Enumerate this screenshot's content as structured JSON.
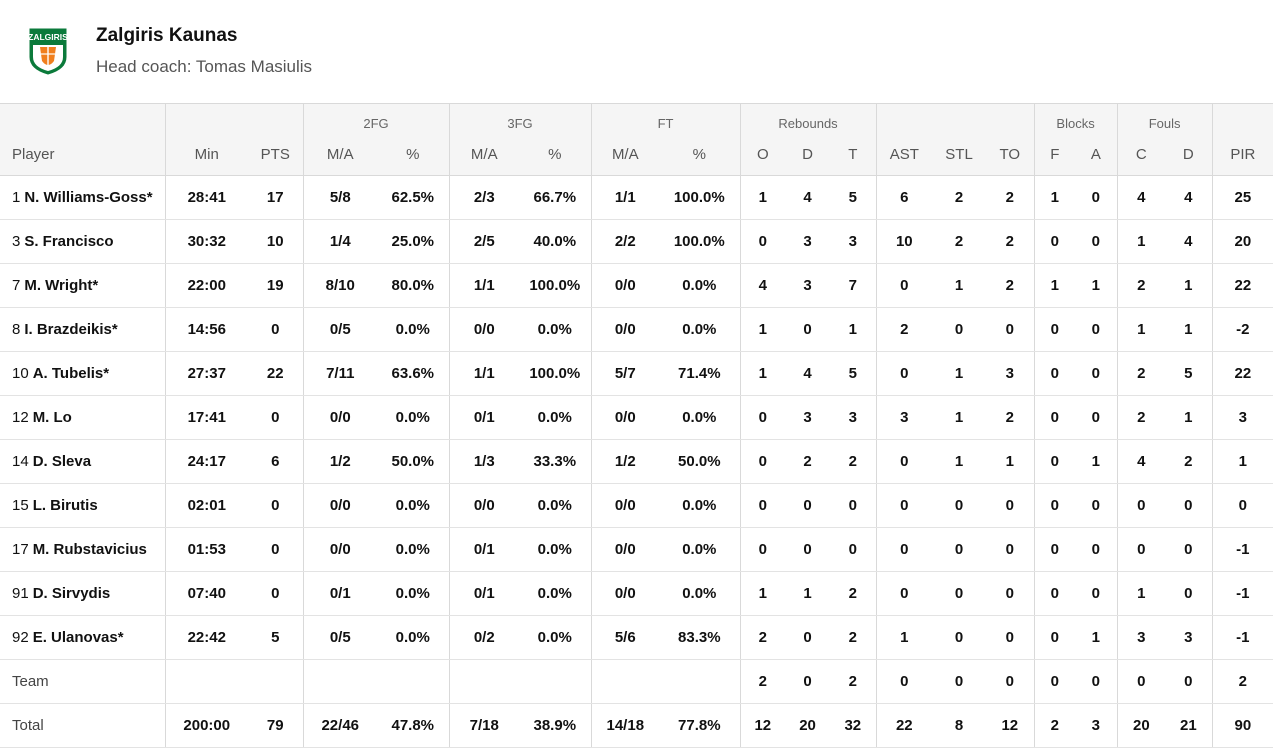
{
  "team": {
    "name": "Zalgiris Kaunas",
    "coach": "Head coach: Tomas Masiulis",
    "logo_text": "ZALGIRIS",
    "colors": {
      "green": "#0b7a3b",
      "orange": "#f07f1e",
      "white": "#ffffff"
    }
  },
  "groups": {
    "fg2": "2FG",
    "fg3": "3FG",
    "ft": "FT",
    "rebounds": "Rebounds",
    "blocks": "Blocks",
    "fouls": "Fouls"
  },
  "columns": [
    "Player",
    "Min",
    "PTS",
    "M/A",
    "%",
    "M/A",
    "%",
    "M/A",
    "%",
    "O",
    "D",
    "T",
    "AST",
    "STL",
    "TO",
    "F",
    "A",
    "C",
    "D",
    "PIR"
  ],
  "players": [
    {
      "num": "1",
      "name": "N. Williams-Goss*",
      "min": "28:41",
      "pts": "17",
      "fg2_ma": "5/8",
      "fg2_pct": "62.5%",
      "fg3_ma": "2/3",
      "fg3_pct": "66.7%",
      "ft_ma": "1/1",
      "ft_pct": "100.0%",
      "reb_o": "1",
      "reb_d": "4",
      "reb_t": "5",
      "ast": "6",
      "stl": "2",
      "to": "2",
      "blk_f": "1",
      "blk_a": "0",
      "foul_c": "4",
      "foul_d": "4",
      "pir": "25"
    },
    {
      "num": "3",
      "name": "S. Francisco",
      "min": "30:32",
      "pts": "10",
      "fg2_ma": "1/4",
      "fg2_pct": "25.0%",
      "fg3_ma": "2/5",
      "fg3_pct": "40.0%",
      "ft_ma": "2/2",
      "ft_pct": "100.0%",
      "reb_o": "0",
      "reb_d": "3",
      "reb_t": "3",
      "ast": "10",
      "stl": "2",
      "to": "2",
      "blk_f": "0",
      "blk_a": "0",
      "foul_c": "1",
      "foul_d": "4",
      "pir": "20"
    },
    {
      "num": "7",
      "name": "M. Wright*",
      "min": "22:00",
      "pts": "19",
      "fg2_ma": "8/10",
      "fg2_pct": "80.0%",
      "fg3_ma": "1/1",
      "fg3_pct": "100.0%",
      "ft_ma": "0/0",
      "ft_pct": "0.0%",
      "reb_o": "4",
      "reb_d": "3",
      "reb_t": "7",
      "ast": "0",
      "stl": "1",
      "to": "2",
      "blk_f": "1",
      "blk_a": "1",
      "foul_c": "2",
      "foul_d": "1",
      "pir": "22"
    },
    {
      "num": "8",
      "name": "I. Brazdeikis*",
      "min": "14:56",
      "pts": "0",
      "fg2_ma": "0/5",
      "fg2_pct": "0.0%",
      "fg3_ma": "0/0",
      "fg3_pct": "0.0%",
      "ft_ma": "0/0",
      "ft_pct": "0.0%",
      "reb_o": "1",
      "reb_d": "0",
      "reb_t": "1",
      "ast": "2",
      "stl": "0",
      "to": "0",
      "blk_f": "0",
      "blk_a": "0",
      "foul_c": "1",
      "foul_d": "1",
      "pir": "-2"
    },
    {
      "num": "10",
      "name": "A. Tubelis*",
      "min": "27:37",
      "pts": "22",
      "fg2_ma": "7/11",
      "fg2_pct": "63.6%",
      "fg3_ma": "1/1",
      "fg3_pct": "100.0%",
      "ft_ma": "5/7",
      "ft_pct": "71.4%",
      "reb_o": "1",
      "reb_d": "4",
      "reb_t": "5",
      "ast": "0",
      "stl": "1",
      "to": "3",
      "blk_f": "0",
      "blk_a": "0",
      "foul_c": "2",
      "foul_d": "5",
      "pir": "22"
    },
    {
      "num": "12",
      "name": "M. Lo",
      "min": "17:41",
      "pts": "0",
      "fg2_ma": "0/0",
      "fg2_pct": "0.0%",
      "fg3_ma": "0/1",
      "fg3_pct": "0.0%",
      "ft_ma": "0/0",
      "ft_pct": "0.0%",
      "reb_o": "0",
      "reb_d": "3",
      "reb_t": "3",
      "ast": "3",
      "stl": "1",
      "to": "2",
      "blk_f": "0",
      "blk_a": "0",
      "foul_c": "2",
      "foul_d": "1",
      "pir": "3"
    },
    {
      "num": "14",
      "name": "D. Sleva",
      "min": "24:17",
      "pts": "6",
      "fg2_ma": "1/2",
      "fg2_pct": "50.0%",
      "fg3_ma": "1/3",
      "fg3_pct": "33.3%",
      "ft_ma": "1/2",
      "ft_pct": "50.0%",
      "reb_o": "0",
      "reb_d": "2",
      "reb_t": "2",
      "ast": "0",
      "stl": "1",
      "to": "1",
      "blk_f": "0",
      "blk_a": "1",
      "foul_c": "4",
      "foul_d": "2",
      "pir": "1"
    },
    {
      "num": "15",
      "name": "L. Birutis",
      "min": "02:01",
      "pts": "0",
      "fg2_ma": "0/0",
      "fg2_pct": "0.0%",
      "fg3_ma": "0/0",
      "fg3_pct": "0.0%",
      "ft_ma": "0/0",
      "ft_pct": "0.0%",
      "reb_o": "0",
      "reb_d": "0",
      "reb_t": "0",
      "ast": "0",
      "stl": "0",
      "to": "0",
      "blk_f": "0",
      "blk_a": "0",
      "foul_c": "0",
      "foul_d": "0",
      "pir": "0"
    },
    {
      "num": "17",
      "name": "M. Rubstavicius",
      "min": "01:53",
      "pts": "0",
      "fg2_ma": "0/0",
      "fg2_pct": "0.0%",
      "fg3_ma": "0/1",
      "fg3_pct": "0.0%",
      "ft_ma": "0/0",
      "ft_pct": "0.0%",
      "reb_o": "0",
      "reb_d": "0",
      "reb_t": "0",
      "ast": "0",
      "stl": "0",
      "to": "0",
      "blk_f": "0",
      "blk_a": "0",
      "foul_c": "0",
      "foul_d": "0",
      "pir": "-1"
    },
    {
      "num": "91",
      "name": "D. Sirvydis",
      "min": "07:40",
      "pts": "0",
      "fg2_ma": "0/1",
      "fg2_pct": "0.0%",
      "fg3_ma": "0/1",
      "fg3_pct": "0.0%",
      "ft_ma": "0/0",
      "ft_pct": "0.0%",
      "reb_o": "1",
      "reb_d": "1",
      "reb_t": "2",
      "ast": "0",
      "stl": "0",
      "to": "0",
      "blk_f": "0",
      "blk_a": "0",
      "foul_c": "1",
      "foul_d": "0",
      "pir": "-1"
    },
    {
      "num": "92",
      "name": "E. Ulanovas*",
      "min": "22:42",
      "pts": "5",
      "fg2_ma": "0/5",
      "fg2_pct": "0.0%",
      "fg3_ma": "0/2",
      "fg3_pct": "0.0%",
      "ft_ma": "5/6",
      "ft_pct": "83.3%",
      "reb_o": "2",
      "reb_d": "0",
      "reb_t": "2",
      "ast": "1",
      "stl": "0",
      "to": "0",
      "blk_f": "0",
      "blk_a": "1",
      "foul_c": "3",
      "foul_d": "3",
      "pir": "-1"
    }
  ],
  "team_row": {
    "label": "Team",
    "min": "",
    "pts": "",
    "fg2_ma": "",
    "fg2_pct": "",
    "fg3_ma": "",
    "fg3_pct": "",
    "ft_ma": "",
    "ft_pct": "",
    "reb_o": "2",
    "reb_d": "0",
    "reb_t": "2",
    "ast": "0",
    "stl": "0",
    "to": "0",
    "blk_f": "0",
    "blk_a": "0",
    "foul_c": "0",
    "foul_d": "0",
    "pir": "2"
  },
  "total_row": {
    "label": "Total",
    "min": "200:00",
    "pts": "79",
    "fg2_ma": "22/46",
    "fg2_pct": "47.8%",
    "fg3_ma": "7/18",
    "fg3_pct": "38.9%",
    "ft_ma": "14/18",
    "ft_pct": "77.8%",
    "reb_o": "12",
    "reb_d": "20",
    "reb_t": "32",
    "ast": "22",
    "stl": "8",
    "to": "12",
    "blk_f": "2",
    "blk_a": "3",
    "foul_c": "20",
    "foul_d": "21",
    "pir": "90"
  }
}
